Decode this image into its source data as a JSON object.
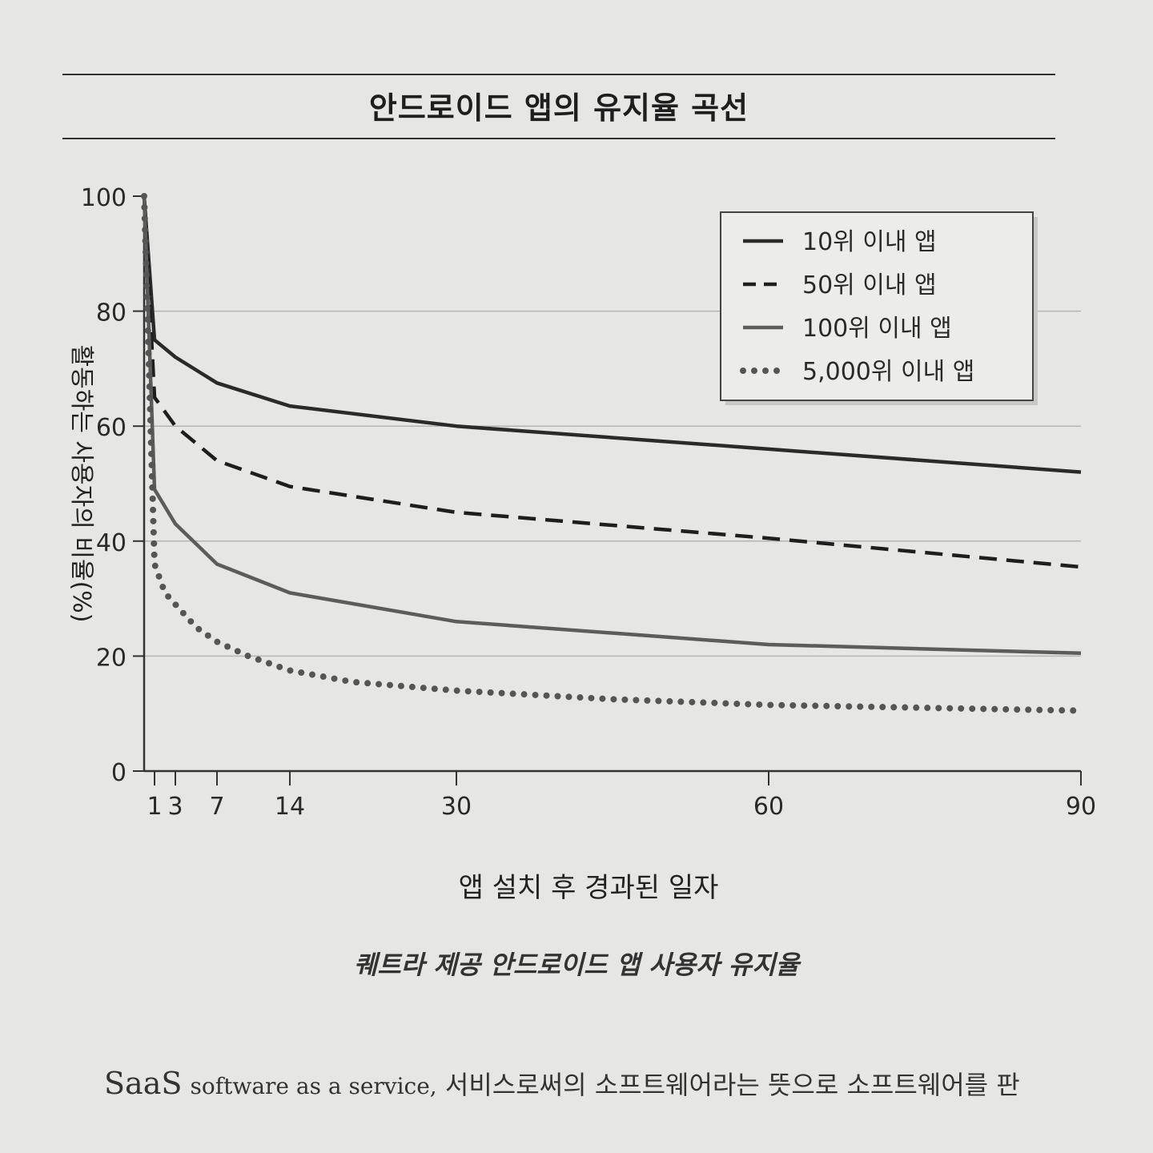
{
  "page": {
    "caption": "퀘트라 제공 안드로이드 앱 사용자 유지율",
    "body_text": {
      "term": "SaaS",
      "english": "software as a service,",
      "korean": "서비스로써의 소프트웨어라는 뜻으로 소프트웨어를 판"
    }
  },
  "chart_data": {
    "type": "line",
    "title": "안드로이드 앱의 유지율 곡선",
    "xlabel": "앱 설치 후 경과된 일자",
    "ylabel": "활동하는 사용자의 비율(%)",
    "x_ticks": [
      1,
      3,
      7,
      14,
      30,
      60,
      90
    ],
    "y_ticks": [
      0,
      20,
      40,
      60,
      80,
      100
    ],
    "xlim": [
      0,
      90
    ],
    "ylim": [
      0,
      100
    ],
    "grid": "horizontal",
    "legend_position": "top-right",
    "series": [
      {
        "name": "10위 이내 앱",
        "style": "solid",
        "color": "#2a2a2a",
        "x": [
          0,
          1,
          3,
          7,
          14,
          30,
          60,
          90
        ],
        "y": [
          100,
          75,
          72,
          67.5,
          63.5,
          60,
          56,
          52
        ]
      },
      {
        "name": "50위 이내 앱",
        "style": "dashed",
        "color": "#1e1e1e",
        "x": [
          0,
          1,
          3,
          7,
          14,
          30,
          60,
          90
        ],
        "y": [
          100,
          65,
          60,
          54,
          49.5,
          45,
          40.5,
          35.5
        ]
      },
      {
        "name": "100위 이내 앱",
        "style": "solid",
        "color": "#5c5c5c",
        "x": [
          0,
          1,
          3,
          7,
          14,
          30,
          60,
          90
        ],
        "y": [
          100,
          49,
          43,
          36,
          31,
          26,
          22,
          20.5
        ]
      },
      {
        "name": "5,000위 이내 앱",
        "style": "dotted",
        "color": "#555555",
        "x": [
          0,
          1,
          2,
          3,
          5,
          7,
          10,
          14,
          20,
          30,
          45,
          60,
          75,
          90
        ],
        "y": [
          100,
          36,
          31,
          29,
          25,
          22.5,
          20,
          17.5,
          15.5,
          14,
          12.5,
          11.5,
          11,
          10.5
        ]
      }
    ]
  }
}
